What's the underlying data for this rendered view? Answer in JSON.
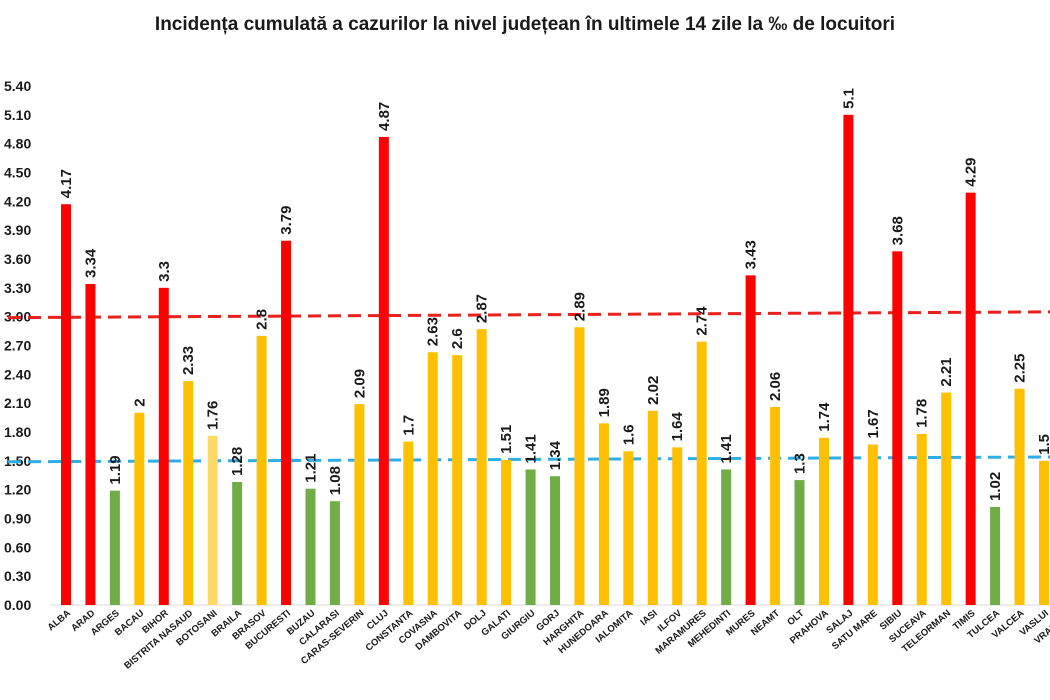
{
  "chart_data": {
    "type": "bar",
    "title": "Incidența cumulată a cazurilor la nivel județean în ultimele 14 zile la ‰ de locuitori",
    "xlabel": "",
    "ylabel": "",
    "ylim": [
      0,
      5.4
    ],
    "yticks": [
      "0.00",
      "0.30",
      "0.60",
      "0.90",
      "1.20",
      "1.50",
      "1.80",
      "2.10",
      "2.40",
      "2.70",
      "3.00",
      "3.30",
      "3.60",
      "3.90",
      "4.20",
      "4.50",
      "4.80",
      "5.10",
      "5.40"
    ],
    "grid": false,
    "legend": "none",
    "categories": [
      "ALBA",
      "ARAD",
      "ARGES",
      "BACAU",
      "BIHOR",
      "BISTRITA NASAUD",
      "BOTOSANI",
      "BRAILA",
      "BRASOV",
      "BUCURESTI",
      "BUZAU",
      "CALARASI",
      "CARAS-SEVERIN",
      "CLUJ",
      "CONSTANTA",
      "COVASNA",
      "DAMBOVITA",
      "DOLJ",
      "GALATI",
      "GIURGIU",
      "GORJ",
      "HARGHITA",
      "HUNEDOARA",
      "IALOMITA",
      "IASI",
      "ILFOV",
      "MARAMURES",
      "MEHEDINTI",
      "MURES",
      "NEAMT",
      "OLT",
      "PRAHOVA",
      "SALAJ",
      "SATU MARE",
      "SIBIU",
      "SUCEAVA",
      "TELEORMAN",
      "TIMIS",
      "TULCEA",
      "VALCEA",
      "VASLUI",
      "VRANCEA"
    ],
    "values": [
      4.17,
      3.34,
      1.19,
      2,
      3.3,
      2.33,
      1.76,
      1.28,
      2.8,
      3.79,
      1.21,
      1.08,
      2.09,
      4.87,
      1.7,
      2.63,
      2.6,
      2.87,
      1.51,
      1.41,
      1.34,
      2.89,
      1.89,
      1.6,
      2.02,
      1.64,
      2.74,
      1.41,
      3.43,
      2.06,
      1.3,
      1.74,
      5.1,
      1.67,
      3.68,
      1.78,
      2.21,
      4.29,
      1.02,
      2.25,
      1.5,
      null
    ],
    "value_labels": [
      "4.17",
      "3.34",
      "1.19",
      "2",
      "3.3",
      "2.33",
      "1.76",
      "1.28",
      "2.8",
      "3.79",
      "1.21",
      "1.08",
      "2.09",
      "4.87",
      "1.7",
      "2.63",
      "2.6",
      "2.87",
      "1.51",
      "1.41",
      "1.34",
      "2.89",
      "1.89",
      "1.6",
      "2.02",
      "1.64",
      "2.74",
      "1.41",
      "3.43",
      "2.06",
      "1.3",
      "1.74",
      "5.1",
      "1.67",
      "3.68",
      "1.78",
      "2.21",
      "4.29",
      "1.02",
      "2.25",
      "1.5",
      ""
    ],
    "bar_colors": [
      "#ff0000",
      "#ff0000",
      "#70ad47",
      "#ffc000",
      "#ff0000",
      "#ffc000",
      "#ffd966",
      "#70ad47",
      "#ffc000",
      "#ff0000",
      "#70ad47",
      "#70ad47",
      "#ffc000",
      "#ff0000",
      "#ffc000",
      "#ffc000",
      "#ffc000",
      "#ffc000",
      "#ffc000",
      "#70ad47",
      "#70ad47",
      "#ffc000",
      "#ffc000",
      "#ffc000",
      "#ffc000",
      "#ffc000",
      "#ffc000",
      "#70ad47",
      "#ff0000",
      "#ffc000",
      "#70ad47",
      "#ffc000",
      "#ff0000",
      "#ffc000",
      "#ff0000",
      "#ffc000",
      "#ffc000",
      "#ff0000",
      "#70ad47",
      "#ffc000",
      "#ffc000",
      "#ffc000"
    ],
    "reference_lines": [
      {
        "color": "#e8211c",
        "style": "dashed",
        "start": 2.99,
        "end": 3.05
      },
      {
        "color": "#2eaee6",
        "style": "dashed",
        "start": 1.49,
        "end": 1.54
      }
    ]
  }
}
